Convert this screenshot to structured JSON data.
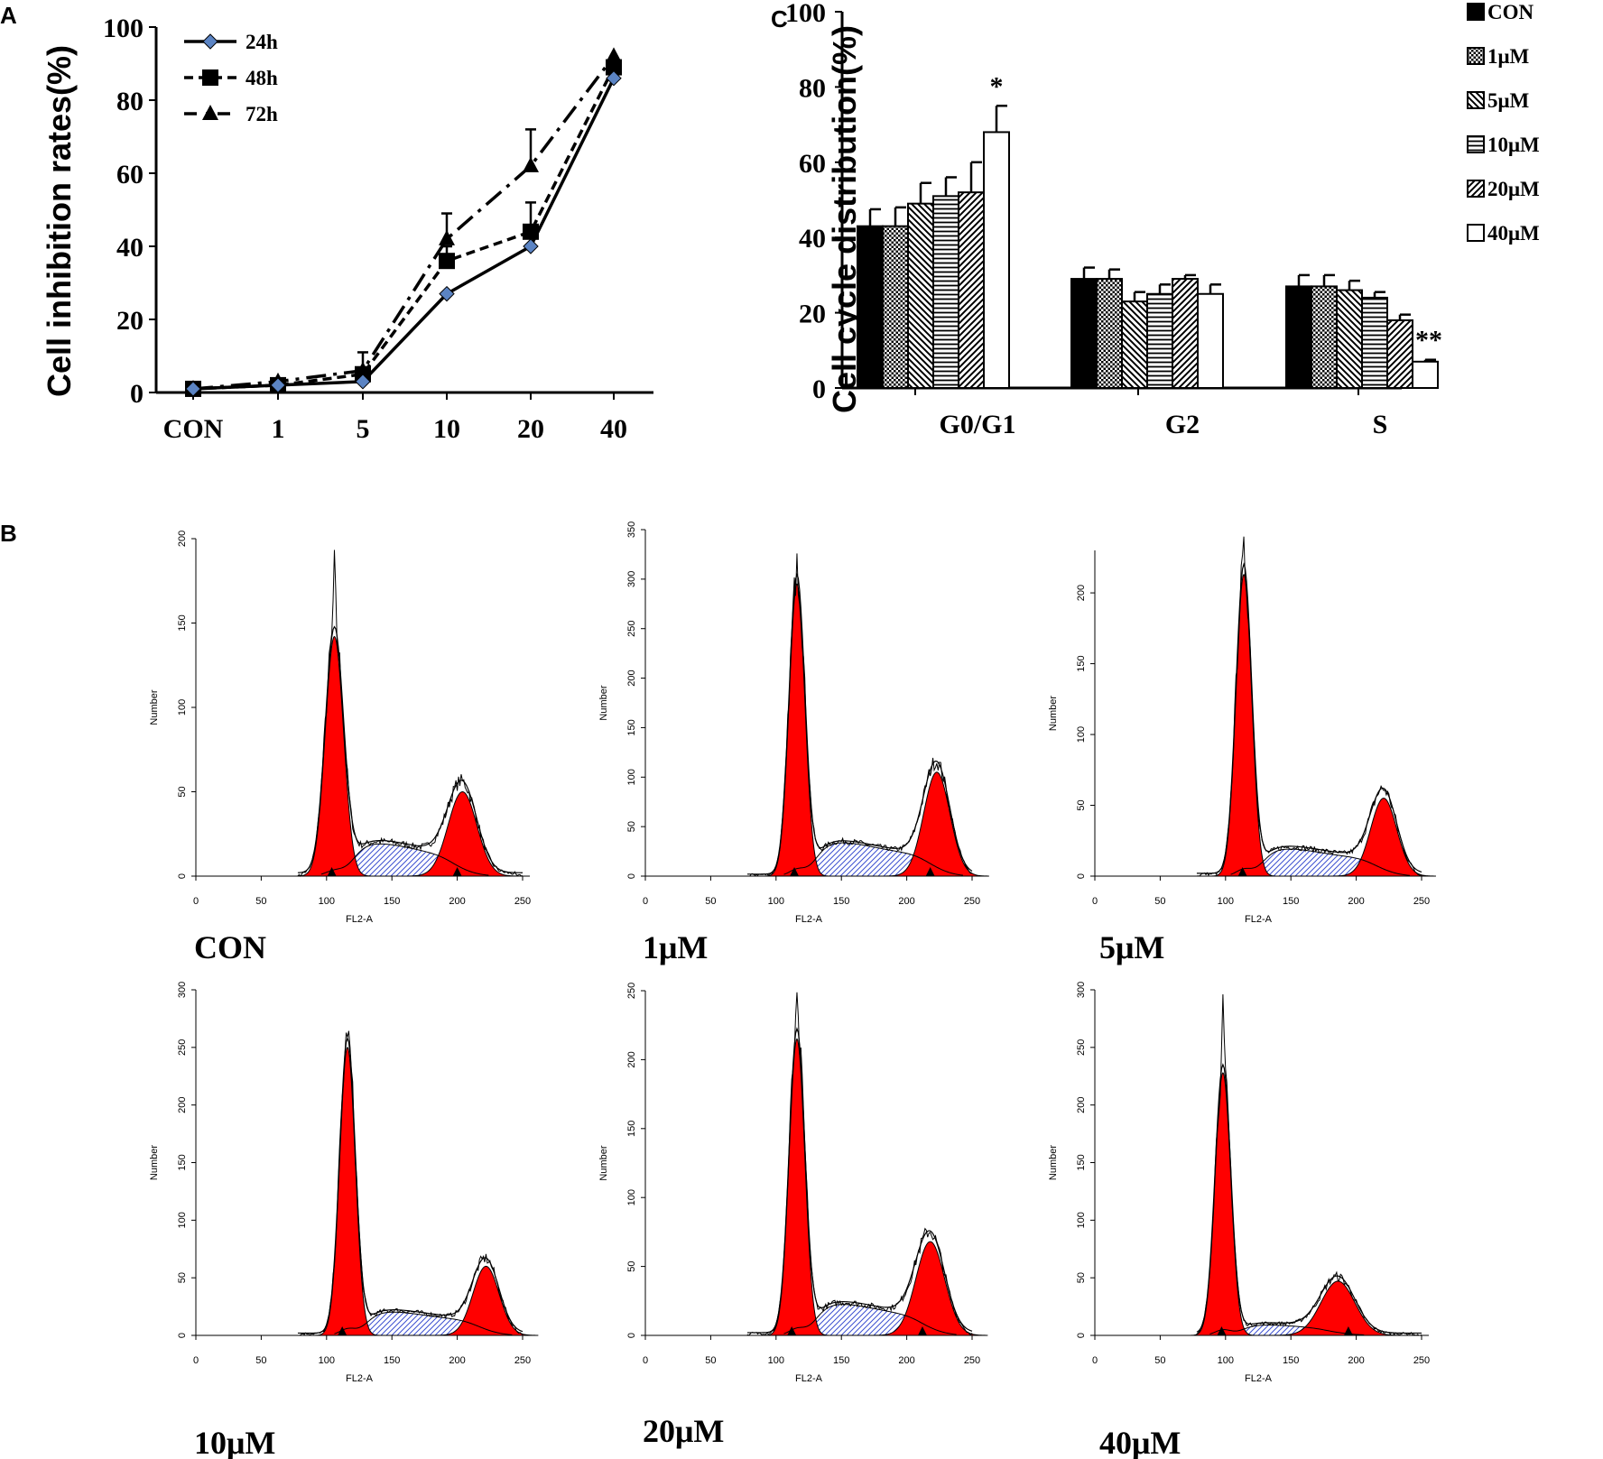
{
  "chart_data": [
    {
      "panel": "A",
      "type": "line",
      "ylabel": "Cell inhibition rates(%)",
      "xlabel": "",
      "categories": [
        "CON",
        "1",
        "5",
        "10",
        "20",
        "40"
      ],
      "ylim": [
        0,
        100
      ],
      "yticks": [
        "0",
        "20",
        "40",
        "60",
        "80",
        "100"
      ],
      "legend_position": "top-left",
      "series": [
        {
          "name": "24h",
          "marker": "diamond",
          "line": "solid",
          "values": [
            1,
            2,
            3,
            27,
            40,
            86
          ],
          "errors": [
            0,
            0,
            0,
            0,
            0,
            0
          ]
        },
        {
          "name": "48h",
          "marker": "square",
          "line": "dashed",
          "values": [
            1,
            2,
            5,
            36,
            44,
            89
          ],
          "errors": [
            0,
            1,
            6,
            4,
            8,
            0
          ]
        },
        {
          "name": "72h",
          "marker": "triangle",
          "line": "dash-dot",
          "values": [
            1,
            3,
            6,
            42,
            62,
            92
          ],
          "errors": [
            0,
            0,
            0,
            7,
            10,
            0
          ]
        }
      ]
    },
    {
      "panel": "C",
      "type": "bar",
      "ylabel": "Cell cycle distribution(%)",
      "xlabel": "",
      "categories": [
        "G0/G1",
        "G2",
        "S"
      ],
      "ylim": [
        0,
        100
      ],
      "yticks": [
        "0",
        "20",
        "40",
        "60",
        "80",
        "100"
      ],
      "legend_position": "top-right",
      "series": [
        {
          "name": "CON",
          "pattern": "solid",
          "values": [
            43,
            29,
            27
          ],
          "errors": [
            4.5,
            3,
            3
          ]
        },
        {
          "name": "1μM",
          "pattern": "checker",
          "values": [
            43,
            29,
            27
          ],
          "errors": [
            5,
            2.5,
            3
          ]
        },
        {
          "name": "5μM",
          "pattern": "backslash",
          "values": [
            49,
            23,
            26
          ],
          "errors": [
            5.5,
            2.5,
            2.5
          ]
        },
        {
          "name": "10μM",
          "pattern": "horizontal",
          "values": [
            51,
            25,
            24
          ],
          "errors": [
            5,
            2.5,
            1.5
          ]
        },
        {
          "name": "20μM",
          "pattern": "slash",
          "values": [
            52,
            29,
            18
          ],
          "errors": [
            8,
            1,
            1.5
          ]
        },
        {
          "name": "40μM",
          "pattern": "open",
          "values": [
            68,
            25,
            7
          ],
          "errors": [
            7,
            2.5,
            0.5
          ]
        }
      ],
      "annotations": [
        {
          "text": "*",
          "category": "G0/G1",
          "series": "40μM"
        },
        {
          "text": "**",
          "category": "S",
          "series": "40μM"
        }
      ]
    },
    {
      "panel": "B",
      "type": "histogram",
      "xlabel": "FL2-A",
      "ylabel": "Number",
      "xticks": [
        "0",
        "50",
        "100",
        "150",
        "200",
        "250"
      ],
      "xlim": [
        0,
        250
      ],
      "histograms": [
        {
          "label": "CON",
          "ymax": 200,
          "yticks": [
            "0",
            "50",
            "100",
            "150",
            "200"
          ],
          "g1_pos": 106,
          "g1_sigma": 7,
          "g1_height": 142,
          "g2_pos": 204,
          "g2_sigma": 11,
          "g2_height": 50,
          "s_height": 17,
          "peak": 182,
          "marker_a": 104,
          "marker_b": 200
        },
        {
          "label": "1μM",
          "ymax": 350,
          "yticks": [
            "0",
            "50",
            "100",
            "150",
            "200",
            "250",
            "300",
            "350"
          ],
          "g1_pos": 116,
          "g1_sigma": 6,
          "g1_height": 295,
          "g2_pos": 223,
          "g2_sigma": 10,
          "g2_height": 105,
          "s_height": 30,
          "peak": 340,
          "marker_a": 114,
          "marker_b": 218
        },
        {
          "label": "5μM",
          "ymax": 230,
          "yticks": [
            "0",
            "50",
            "100",
            "150",
            "200"
          ],
          "g1_pos": 114,
          "g1_sigma": 6,
          "g1_height": 213,
          "g2_pos": 221,
          "g2_sigma": 10,
          "g2_height": 55,
          "s_height": 17,
          "peak": 225,
          "marker_a": 113,
          "marker_b": 0
        },
        {
          "label": "10μM",
          "ymax": 300,
          "yticks": [
            "0",
            "50",
            "100",
            "150",
            "200",
            "250",
            "300"
          ],
          "g1_pos": 116,
          "g1_sigma": 6,
          "g1_height": 250,
          "g2_pos": 222,
          "g2_sigma": 10,
          "g2_height": 60,
          "s_height": 18,
          "peak": 268,
          "marker_a": 112,
          "marker_b": 0
        },
        {
          "label": "20μM",
          "ymax": 250,
          "yticks": [
            "0",
            "50",
            "100",
            "150",
            "200",
            "250"
          ],
          "g1_pos": 116,
          "g1_sigma": 6,
          "g1_height": 215,
          "g2_pos": 218,
          "g2_sigma": 11,
          "g2_height": 68,
          "s_height": 20,
          "peak": 240,
          "marker_a": 112,
          "marker_b": 212
        },
        {
          "label": "40μM",
          "ymax": 300,
          "yticks": [
            "0",
            "50",
            "100",
            "150",
            "200",
            "250",
            "300"
          ],
          "g1_pos": 98,
          "g1_sigma": 6,
          "g1_height": 228,
          "g2_pos": 186,
          "g2_sigma": 13,
          "g2_height": 47,
          "s_height": 8,
          "peak": 278,
          "marker_a": 97,
          "marker_b": 194
        }
      ]
    }
  ],
  "panel_labels": {
    "a": "A",
    "b": "B",
    "c": "C"
  },
  "colors": {
    "peak_fill": "#ff0000",
    "s_phase": "#3b4fd0",
    "ink": "#000000"
  }
}
